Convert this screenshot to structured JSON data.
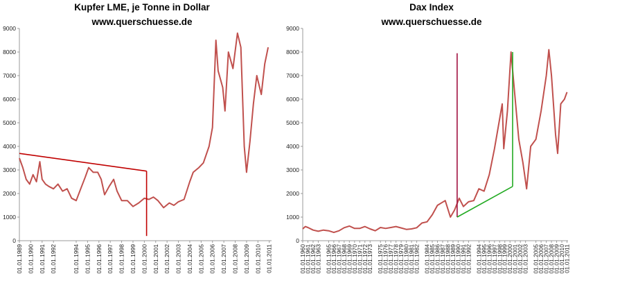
{
  "chart_data": [
    {
      "type": "line",
      "title": "Kupfer LME, je Tonne in Dollar",
      "subtitle": "www.querschuesse.de",
      "color": "#c0504d",
      "x": [
        1989.0,
        1989.3,
        1989.6,
        1989.9,
        1990.2,
        1990.5,
        1990.8,
        1991.0,
        1991.3,
        1991.6,
        1992.0,
        1992.4,
        1992.8,
        1993.2,
        1993.6,
        1994.0,
        1994.4,
        1994.8,
        1995.1,
        1995.5,
        1995.9,
        1996.2,
        1996.5,
        1996.9,
        1997.3,
        1997.6,
        1998.0,
        1998.5,
        1999.0,
        1999.5,
        2000.0,
        2000.4,
        2000.8,
        2001.2,
        2001.7,
        2002.2,
        2002.6,
        2003.0,
        2003.5,
        2004.0,
        2004.3,
        2004.8,
        2005.2,
        2005.7,
        2006.0,
        2006.3,
        2006.5,
        2006.9,
        2007.1,
        2007.4,
        2007.8,
        2008.2,
        2008.5,
        2008.8,
        2009.0,
        2009.3,
        2009.6,
        2009.9,
        2010.3,
        2010.6,
        2010.9
      ],
      "values": [
        3500,
        3100,
        2600,
        2400,
        2800,
        2500,
        3350,
        2600,
        2400,
        2300,
        2200,
        2400,
        2100,
        2200,
        1800,
        1700,
        2200,
        2700,
        3100,
        2900,
        2900,
        2600,
        1950,
        2300,
        2600,
        2100,
        1700,
        1700,
        1450,
        1600,
        1800,
        1750,
        1850,
        1700,
        1400,
        1600,
        1500,
        1650,
        1750,
        2500,
        2900,
        3100,
        3300,
        4000,
        4800,
        8500,
        7200,
        6500,
        5500,
        8000,
        7300,
        8800,
        8200,
        4000,
        2900,
        4200,
        5800,
        7000,
        6200,
        7500,
        8200
      ],
      "xlim": [
        1989,
        2011.2
      ],
      "ylim": [
        0,
        9000
      ],
      "yticks": [
        0,
        1000,
        2000,
        3000,
        4000,
        5000,
        6000,
        7000,
        8000,
        9000
      ],
      "xticks": [
        {
          "value": 1989,
          "label": "01.01.1989"
        },
        {
          "value": 1990,
          "label": "01.01.1990"
        },
        {
          "value": 1991,
          "label": "01.01.1991"
        },
        {
          "value": 1992,
          "label": "01.01.1992"
        },
        {
          "value": 1994,
          "label": "01.01.1994"
        },
        {
          "value": 1995,
          "label": "01.01.1995"
        },
        {
          "value": 1996,
          "label": "01.01.1996"
        },
        {
          "value": 1997,
          "label": "01.01.1997"
        },
        {
          "value": 1998,
          "label": "01.01.1998"
        },
        {
          "value": 1999,
          "label": "01.01.1999"
        },
        {
          "value": 2000,
          "label": "01.01.2000"
        },
        {
          "value": 2001,
          "label": "01.01.2001"
        },
        {
          "value": 2002,
          "label": "01.01.2002"
        },
        {
          "value": 2003,
          "label": "01.01.2003"
        },
        {
          "value": 2004,
          "label": "01.01.2004"
        },
        {
          "value": 2005,
          "label": "01.01.2005"
        },
        {
          "value": 2006,
          "label": "01.01.2006"
        },
        {
          "value": 2007,
          "label": "01.01.2007"
        },
        {
          "value": 2008,
          "label": "01.01.2008"
        },
        {
          "value": 2009,
          "label": "01.01.2009"
        },
        {
          "value": 2010,
          "label": "01.01.2010"
        },
        {
          "value": 2011,
          "label": "01.01.2011"
        }
      ],
      "annotation_lines": [
        {
          "x": [
            1989,
            2000.2
          ],
          "y": [
            3700,
            2950
          ],
          "color": "#c00000"
        },
        {
          "x": [
            2000.2,
            2000.2
          ],
          "y": [
            2950,
            200
          ],
          "color": "#c00000"
        }
      ]
    },
    {
      "type": "line",
      "title": "Dax Index",
      "subtitle": "www.querschuesse.de",
      "color": "#c0504d",
      "x": [
        1960,
        1960.5,
        1961,
        1962,
        1963,
        1964,
        1965,
        1966,
        1967,
        1968,
        1969,
        1970,
        1971,
        1972,
        1973,
        1974,
        1975,
        1976,
        1977,
        1978,
        1979,
        1980,
        1981,
        1982,
        1983,
        1984,
        1985,
        1986,
        1987.5,
        1988.5,
        1989.3,
        1990.2,
        1991,
        1992,
        1993,
        1994,
        1995,
        1996,
        1997,
        1998.5,
        1998.8,
        1999.5,
        2000.2,
        2000.8,
        2001.7,
        2002.5,
        2003.2,
        2004,
        2005,
        2006,
        2007,
        2007.5,
        2008,
        2008.8,
        2009.2,
        2009.8,
        2010.5,
        2011
      ],
      "values": [
        500,
        600,
        560,
        450,
        400,
        450,
        420,
        350,
        420,
        550,
        620,
        520,
        520,
        600,
        500,
        420,
        560,
        520,
        560,
        600,
        540,
        480,
        500,
        550,
        750,
        800,
        1100,
        1500,
        1700,
        1000,
        1300,
        1800,
        1450,
        1650,
        1700,
        2200,
        2100,
        2800,
        3900,
        5800,
        3900,
        5500,
        8000,
        6500,
        4300,
        3300,
        2200,
        4000,
        4300,
        5500,
        7000,
        8100,
        7000,
        4500,
        3700,
        5800,
        6000,
        6300
      ],
      "xlim": [
        1960,
        2011.2
      ],
      "ylim": [
        0,
        9000
      ],
      "yticks": [
        0,
        1000,
        2000,
        3000,
        4000,
        5000,
        6000,
        7000,
        8000,
        9000
      ],
      "xticks": [
        {
          "value": 1960,
          "label": "01.01.1960"
        },
        {
          "value": 1961,
          "label": "01.01.1961"
        },
        {
          "value": 1962,
          "label": "01.01.1962"
        },
        {
          "value": 1963,
          "label": "01.01.1963"
        },
        {
          "value": 1965,
          "label": "01.01.1965"
        },
        {
          "value": 1966,
          "label": "01.01.1966"
        },
        {
          "value": 1967,
          "label": "01.01.1967"
        },
        {
          "value": 1968,
          "label": "01.01.1968"
        },
        {
          "value": 1969,
          "label": "01.01.1969"
        },
        {
          "value": 1970,
          "label": "01.01.1970"
        },
        {
          "value": 1971,
          "label": "01.01.1971"
        },
        {
          "value": 1972,
          "label": "01.01.1972"
        },
        {
          "value": 1973,
          "label": "01.01.1973"
        },
        {
          "value": 1975,
          "label": "01.01.1975"
        },
        {
          "value": 1976,
          "label": "01.01.1976"
        },
        {
          "value": 1977,
          "label": "01.01.1977"
        },
        {
          "value": 1978,
          "label": "01.01.1978"
        },
        {
          "value": 1979,
          "label": "01.01.1979"
        },
        {
          "value": 1980,
          "label": "01.01.1980"
        },
        {
          "value": 1981,
          "label": "01.01.1981"
        },
        {
          "value": 1982,
          "label": "01.01.1982"
        },
        {
          "value": 1984,
          "label": "01.01.1984"
        },
        {
          "value": 1985,
          "label": "01.01.1985"
        },
        {
          "value": 1986,
          "label": "01.01.1986"
        },
        {
          "value": 1987,
          "label": "01.01.1987"
        },
        {
          "value": 1988,
          "label": "01.01.1988"
        },
        {
          "value": 1989,
          "label": "01.01.1989"
        },
        {
          "value": 1990,
          "label": "01.01.1990"
        },
        {
          "value": 1991,
          "label": "01.01.1991"
        },
        {
          "value": 1992,
          "label": "01.01.1992"
        },
        {
          "value": 1994,
          "label": "01.01.1994"
        },
        {
          "value": 1995,
          "label": "01.01.1995"
        },
        {
          "value": 1996,
          "label": "01.01.1996"
        },
        {
          "value": 1997,
          "label": "01.01.1997"
        },
        {
          "value": 1998,
          "label": "01.01.1998"
        },
        {
          "value": 1999,
          "label": "01.01.1999"
        },
        {
          "value": 2000,
          "label": "01.01.2000"
        },
        {
          "value": 2001,
          "label": "01.01.2001"
        },
        {
          "value": 2002,
          "label": "01.01.2002"
        },
        {
          "value": 2003,
          "label": "01.01.2003"
        },
        {
          "value": 2005,
          "label": "01.01.2005"
        },
        {
          "value": 2006,
          "label": "01.01.2006"
        },
        {
          "value": 2007,
          "label": "01.01.2007"
        },
        {
          "value": 2008,
          "label": "01.01.2008"
        },
        {
          "value": 2009,
          "label": "01.01.2009"
        },
        {
          "value": 2010,
          "label": "01.01.2010"
        },
        {
          "value": 2011,
          "label": "01.01.2011"
        }
      ],
      "annotation_lines": [
        {
          "x": [
            1989.8,
            1989.8
          ],
          "y": [
            1000,
            7950
          ],
          "color": "#a01040"
        },
        {
          "x": [
            1989.8,
            2000.5
          ],
          "y": [
            1000,
            2300
          ],
          "color": "#22aa22"
        },
        {
          "x": [
            2000.5,
            2000.5
          ],
          "y": [
            2300,
            8000
          ],
          "color": "#22aa22"
        }
      ]
    }
  ]
}
